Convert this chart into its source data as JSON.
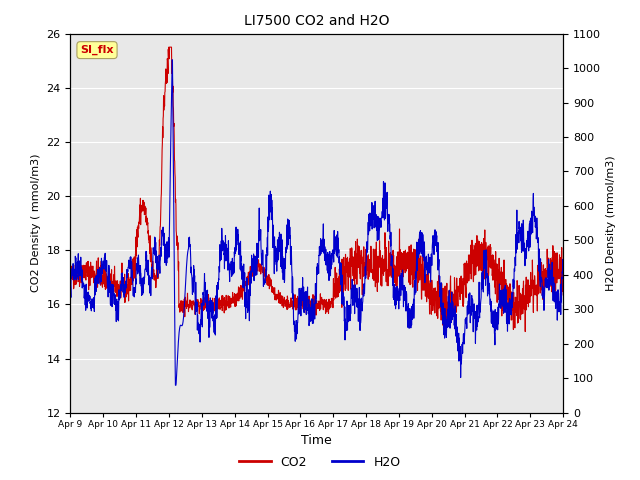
{
  "title": "LI7500 CO2 and H2O",
  "xlabel": "Time",
  "ylabel_left": "CO2 Density ( mmol/m3)",
  "ylabel_right": "H2O Density (mmol/m3)",
  "ylim_left": [
    12,
    26
  ],
  "ylim_right": [
    0,
    1100
  ],
  "annotation_text": "SI_flx",
  "annotation_color": "#cc0000",
  "annotation_bg": "#ffff99",
  "plot_bg": "#e8e8e8",
  "co2_color": "#cc0000",
  "h2o_color": "#0000cc",
  "legend_co2": "CO2",
  "legend_h2o": "H2O",
  "x_tick_labels": [
    "Apr 9",
    "Apr 10",
    "Apr 11",
    "Apr 12",
    "Apr 13",
    "Apr 14",
    "Apr 15",
    "Apr 16",
    "Apr 17",
    "Apr 18",
    "Apr 19",
    "Apr 20",
    "Apr 21",
    "Apr 22",
    "Apr 23",
    "Apr 24"
  ],
  "yticks_left": [
    12,
    14,
    16,
    18,
    20,
    22,
    24,
    26
  ],
  "yticks_right": [
    0,
    100,
    200,
    300,
    400,
    500,
    600,
    700,
    800,
    900,
    1000,
    1100
  ]
}
